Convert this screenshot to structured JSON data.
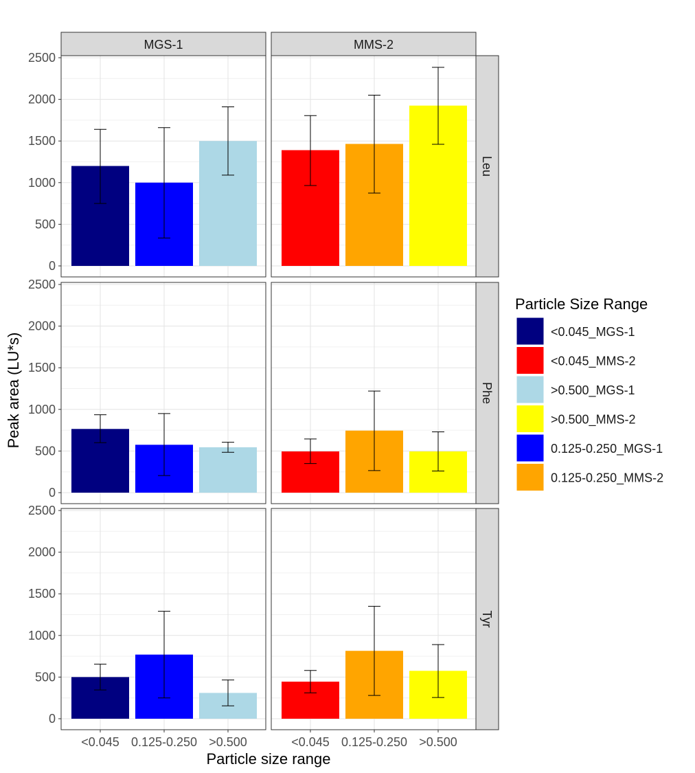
{
  "chart_data": {
    "type": "bar",
    "xlabel": "Particle size range",
    "ylabel": "Peak area (LU*s)",
    "ylim": [
      0,
      2500
    ],
    "yticks": [
      0,
      500,
      1000,
      1500,
      2000,
      2500
    ],
    "grid": true,
    "legend_position": "right",
    "categories": [
      "<0.045",
      "0.125-0.250",
      ">0.500"
    ],
    "column_facets": [
      "MGS-1",
      "MMS-2"
    ],
    "row_facets": [
      "Leu",
      "Phe",
      "Tyr"
    ],
    "legend": {
      "title": "Particle Size Range",
      "items": [
        {
          "label": "<0.045_MGS-1",
          "color": "#000080"
        },
        {
          "label": "<0.045_MMS-2",
          "color": "#ff0000"
        },
        {
          "label": ">0.500_MGS-1",
          "color": "#add8e6"
        },
        {
          "label": ">0.500_MMS-2",
          "color": "#ffff00"
        },
        {
          "label": "0.125-0.250_MGS-1",
          "color": "#0000ff"
        },
        {
          "label": "0.125-0.250_MMS-2",
          "color": "#ffa500"
        }
      ]
    },
    "colors": {
      "MGS-1": [
        "#000080",
        "#0000ff",
        "#add8e6"
      ],
      "MMS-2": [
        "#ff0000",
        "#ffa500",
        "#ffff00"
      ]
    },
    "panels": {
      "Leu": {
        "MGS-1": [
          {
            "value": 1200,
            "err_low": 750,
            "err_high": 1640
          },
          {
            "value": 1000,
            "err_low": 335,
            "err_high": 1660
          },
          {
            "value": 1500,
            "err_low": 1090,
            "err_high": 1910
          }
        ],
        "MMS-2": [
          {
            "value": 1390,
            "err_low": 965,
            "err_high": 1805
          },
          {
            "value": 1465,
            "err_low": 875,
            "err_high": 2050
          },
          {
            "value": 1925,
            "err_low": 1460,
            "err_high": 2385
          }
        ]
      },
      "Phe": {
        "MGS-1": [
          {
            "value": 765,
            "err_low": 600,
            "err_high": 935
          },
          {
            "value": 575,
            "err_low": 205,
            "err_high": 950
          },
          {
            "value": 545,
            "err_low": 485,
            "err_high": 605
          }
        ],
        "MMS-2": [
          {
            "value": 495,
            "err_low": 350,
            "err_high": 645
          },
          {
            "value": 745,
            "err_low": 265,
            "err_high": 1220
          },
          {
            "value": 495,
            "err_low": 260,
            "err_high": 730
          }
        ]
      },
      "Tyr": {
        "MGS-1": [
          {
            "value": 500,
            "err_low": 345,
            "err_high": 655
          },
          {
            "value": 770,
            "err_low": 250,
            "err_high": 1290
          },
          {
            "value": 310,
            "err_low": 155,
            "err_high": 465
          }
        ],
        "MMS-2": [
          {
            "value": 445,
            "err_low": 310,
            "err_high": 580
          },
          {
            "value": 815,
            "err_low": 280,
            "err_high": 1350
          },
          {
            "value": 575,
            "err_low": 255,
            "err_high": 890
          }
        ]
      }
    }
  }
}
